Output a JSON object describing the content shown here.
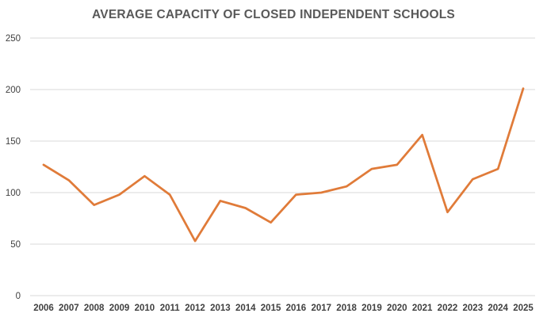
{
  "chart_data": {
    "type": "line",
    "title": "AVERAGE CAPACITY OF CLOSED INDEPENDENT SCHOOLS",
    "xlabel": "",
    "ylabel": "",
    "x": [
      "2006",
      "2007",
      "2008",
      "2009",
      "2010",
      "2011",
      "2012",
      "2013",
      "2014",
      "2015",
      "2016",
      "2017",
      "2018",
      "2019",
      "2020",
      "2021",
      "2022",
      "2023",
      "2024",
      "2025"
    ],
    "series": [
      {
        "values": [
          127,
          112,
          88,
          98,
          116,
          98,
          53,
          92,
          85,
          71,
          98,
          100,
          106,
          123,
          127,
          156,
          81,
          113,
          123,
          201
        ]
      }
    ],
    "ylim": [
      0,
      250
    ],
    "yticks": [
      0,
      50,
      100,
      150,
      200,
      250
    ],
    "grid": true,
    "legend": "none",
    "colors": {
      "line": "#E07B39",
      "grid": "#D9D9D9",
      "text": "#404040",
      "title": "#595959"
    }
  }
}
